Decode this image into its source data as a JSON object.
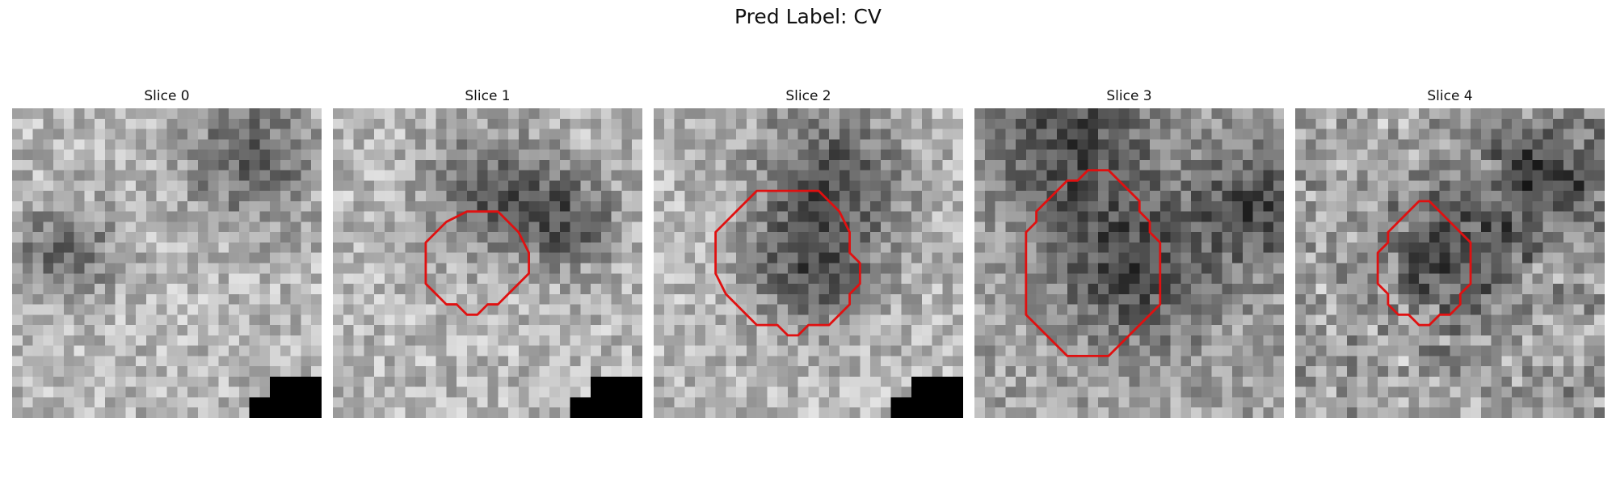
{
  "figure": {
    "title": "Pred Label: CV"
  },
  "colors": {
    "contour": "#e01010",
    "background": "#ffffff"
  },
  "slices": [
    {
      "title": "Slice 0",
      "seed": 11,
      "dark_regions": [
        [
          0.75,
          0.15,
          0.2
        ],
        [
          0.15,
          0.45,
          0.15
        ]
      ],
      "contour": []
    },
    {
      "title": "Slice 1",
      "seed": 23,
      "dark_regions": [
        [
          0.5,
          0.25,
          0.2
        ],
        [
          0.75,
          0.35,
          0.15
        ]
      ],
      "contour": [
        [
          13,
          10
        ],
        [
          16,
          10
        ],
        [
          18,
          12
        ],
        [
          19,
          14
        ],
        [
          19,
          16
        ],
        [
          17,
          18
        ],
        [
          16,
          19
        ],
        [
          15,
          19
        ],
        [
          14,
          20
        ],
        [
          13,
          20
        ],
        [
          12,
          19
        ],
        [
          11,
          19
        ],
        [
          10,
          18
        ],
        [
          9,
          17
        ],
        [
          9,
          13
        ],
        [
          11,
          11
        ]
      ]
    },
    {
      "title": "Slice 2",
      "seed": 37,
      "dark_regions": [
        [
          0.55,
          0.2,
          0.25
        ],
        [
          0.5,
          0.5,
          0.2
        ]
      ],
      "contour": [
        [
          13,
          8
        ],
        [
          16,
          8
        ],
        [
          18,
          10
        ],
        [
          19,
          12
        ],
        [
          19,
          14
        ],
        [
          20,
          15
        ],
        [
          20,
          17
        ],
        [
          19,
          18
        ],
        [
          19,
          19
        ],
        [
          18,
          20
        ],
        [
          17,
          21
        ],
        [
          15,
          21
        ],
        [
          14,
          22
        ],
        [
          13,
          22
        ],
        [
          12,
          21
        ],
        [
          10,
          21
        ],
        [
          9,
          20
        ],
        [
          7,
          18
        ],
        [
          6,
          16
        ],
        [
          6,
          12
        ],
        [
          7,
          11
        ],
        [
          8,
          10
        ],
        [
          9,
          9
        ],
        [
          10,
          8
        ],
        [
          11,
          8
        ]
      ]
    },
    {
      "title": "Slice 3",
      "seed": 53,
      "dark_regions": [
        [
          0.3,
          0.1,
          0.25
        ],
        [
          0.9,
          0.3,
          0.2
        ],
        [
          0.5,
          0.5,
          0.25
        ]
      ],
      "contour": [
        [
          11,
          6
        ],
        [
          13,
          6
        ],
        [
          14,
          7
        ],
        [
          15,
          8
        ],
        [
          16,
          9
        ],
        [
          16,
          10
        ],
        [
          17,
          11
        ],
        [
          17,
          12
        ],
        [
          18,
          13
        ],
        [
          18,
          19
        ],
        [
          17,
          20
        ],
        [
          16,
          21
        ],
        [
          15,
          22
        ],
        [
          14,
          23
        ],
        [
          13,
          24
        ],
        [
          9,
          24
        ],
        [
          8,
          23
        ],
        [
          7,
          22
        ],
        [
          6,
          21
        ],
        [
          5,
          20
        ],
        [
          5,
          12
        ],
        [
          6,
          11
        ],
        [
          6,
          10
        ],
        [
          7,
          9
        ],
        [
          8,
          8
        ],
        [
          9,
          7
        ],
        [
          10,
          7
        ]
      ]
    },
    {
      "title": "Slice 4",
      "seed": 71,
      "dark_regions": [
        [
          0.5,
          0.45,
          0.2
        ],
        [
          0.8,
          0.2,
          0.2
        ]
      ],
      "contour": [
        [
          13,
          9
        ],
        [
          14,
          10
        ],
        [
          15,
          11
        ],
        [
          16,
          12
        ],
        [
          17,
          13
        ],
        [
          17,
          17
        ],
        [
          16,
          18
        ],
        [
          16,
          19
        ],
        [
          15,
          20
        ],
        [
          14,
          20
        ],
        [
          13,
          21
        ],
        [
          12,
          21
        ],
        [
          11,
          20
        ],
        [
          10,
          20
        ],
        [
          9,
          19
        ],
        [
          9,
          18
        ],
        [
          8,
          17
        ],
        [
          8,
          14
        ],
        [
          9,
          13
        ],
        [
          9,
          12
        ],
        [
          10,
          11
        ],
        [
          11,
          10
        ],
        [
          12,
          9
        ]
      ]
    }
  ]
}
